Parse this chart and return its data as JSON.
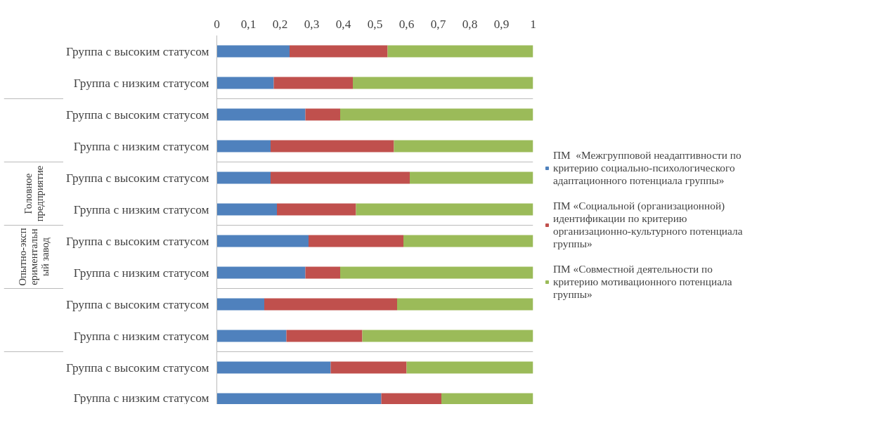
{
  "chart_data": {
    "type": "bar",
    "orientation": "horizontal",
    "stacked": true,
    "categories": [
      "Группа с высоким статусом",
      "Группа с низким статусом",
      "Группа с высоким статусом",
      "Группа с низким статусом",
      "Группа с высоким статусом",
      "Группа с низким статусом",
      "Группа с высоким статусом",
      "Группа с низким статусом",
      "Группа с высоким статусом",
      "Группа с низким статусом",
      "Группа с высоким статусом",
      "Группа с низким статусом"
    ],
    "series": [
      {
        "name": "ПМ  «Межгрупповой неадаптивности по критерию социально-психологического адаптационного потенциала группы»",
        "color": "#4f81bd",
        "values": [
          0.23,
          0.18,
          0.28,
          0.17,
          0.17,
          0.19,
          0.29,
          0.28,
          0.15,
          0.22,
          0.36,
          0.52
        ]
      },
      {
        "name": "ПМ «Социальной (организационной) идентификации по критерию организационно-культурного потенциала группы»",
        "color": "#c0504d",
        "values": [
          0.31,
          0.25,
          0.11,
          0.39,
          0.44,
          0.25,
          0.3,
          0.11,
          0.42,
          0.24,
          0.24,
          0.19
        ]
      },
      {
        "name": "ПМ «Совместной деятельности по критерию мотивационного потенциала группы»",
        "color": "#9bbb59",
        "values": [
          0.46,
          0.57,
          0.61,
          0.44,
          0.39,
          0.56,
          0.41,
          0.61,
          0.43,
          0.54,
          0.4,
          0.29
        ]
      }
    ],
    "xlim": [
      0,
      1
    ],
    "xticks": [
      0,
      {
        "value": 0.1,
        "label": "0,1"
      },
      {
        "value": 0.2,
        "label": "0,2"
      },
      {
        "value": 0.3,
        "label": "0,3"
      },
      {
        "value": 0.4,
        "label": "0,4"
      },
      {
        "value": 0.5,
        "label": "0,5"
      },
      {
        "value": 0.6,
        "label": "0,6"
      },
      {
        "value": 0.7,
        "label": "0,7"
      },
      {
        "value": 0.8,
        "label": "0,8"
      },
      {
        "value": 0.9,
        "label": "0,9"
      },
      1
    ],
    "annotations": [
      "Головное предприятие",
      "Опытно-экспериментальный завод"
    ],
    "grid": false,
    "legend": "right"
  }
}
